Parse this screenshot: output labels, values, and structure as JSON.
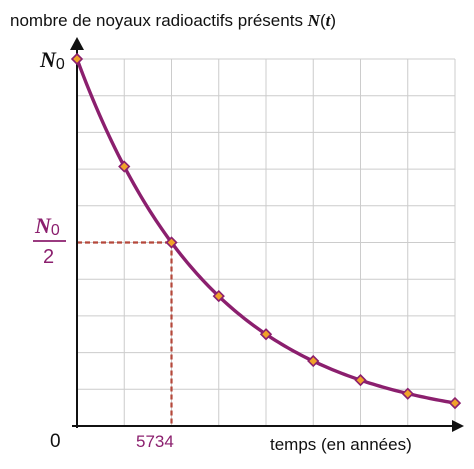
{
  "chart_data": {
    "type": "line",
    "ylabel_text": "nombre de noyaux radioactifs présents ",
    "ylabel_symbol": "N",
    "ylabel_paren_open": "(",
    "ylabel_symbol_var": "t",
    "ylabel_paren_close": ")",
    "xlabel": "temps (en années)",
    "origin_label": "0",
    "y_top_label": {
      "symbol": "N",
      "subscript": "0"
    },
    "y_half_label": {
      "symbol": "N",
      "subscript": "0",
      "denominator": "2"
    },
    "half_life_label": "5734",
    "half_life": 5734,
    "x_unit_per_grid": 2867,
    "grid_columns": 8,
    "grid_rows": 10,
    "xlim": [
      0,
      22936
    ],
    "ylim": [
      0,
      1
    ],
    "series": [
      {
        "x": [
          0,
          2867,
          5734,
          8601,
          11468,
          14335,
          17202,
          20069,
          22936
        ],
        "values": [
          1,
          0.707,
          0.5,
          0.354,
          0.25,
          0.177,
          0.125,
          0.088,
          0.0625
        ]
      }
    ],
    "colors": {
      "curve": "#8b1f6e",
      "marker_fill": "#f0a22a",
      "marker_stroke": "#8b1f6e",
      "guide": "#b5473a",
      "accent_text": "#8b1f6e",
      "grid": "#cccccc",
      "axis": "#111111"
    },
    "grid": true
  }
}
